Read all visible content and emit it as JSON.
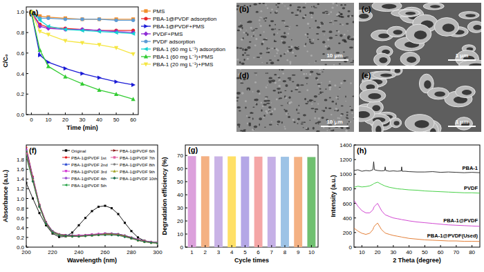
{
  "chart_data": [
    {
      "type": "line",
      "title": "(a)",
      "x_label": "Time (min)",
      "y_label": "C/C₀",
      "x": [
        0,
        5,
        10,
        20,
        30,
        40,
        50,
        60
      ],
      "xlim": [
        -3,
        63
      ],
      "xticks": [
        0,
        10,
        20,
        30,
        40,
        50,
        60
      ],
      "ylim": [
        0,
        1.05
      ],
      "yticks": [
        {
          "value": 0,
          "label": "0.0"
        },
        {
          "value": 0.2,
          "label": "0.2"
        },
        {
          "value": 0.4,
          "label": "0.4"
        },
        {
          "value": 0.6,
          "label": "0.6"
        },
        {
          "value": 0.8,
          "label": "0.8"
        },
        {
          "value": 1,
          "label": "1.0"
        }
      ],
      "legend": "right",
      "series": [
        {
          "name": "PMS",
          "color": "#f28e2b",
          "marker": "square",
          "values": [
            1,
            0.96,
            0.95,
            0.94,
            0.93,
            0.93,
            0.93,
            0.93
          ]
        },
        {
          "name": "PBA-1@PVDF adsorption",
          "color": "#e8262a",
          "marker": "circle",
          "values": [
            1,
            0.88,
            0.85,
            0.84,
            0.83,
            0.82,
            0.82,
            0.82
          ]
        },
        {
          "name": "PBA-1@PVDF+PMS",
          "color": "#1a1ad6",
          "marker": "triangle-right",
          "values": [
            1,
            0.58,
            0.51,
            0.45,
            0.4,
            0.36,
            0.32,
            0.29
          ]
        },
        {
          "name": "PVDF+PMS",
          "color": "#8e2bd6",
          "marker": "diamond",
          "values": [
            1,
            0.86,
            0.84,
            0.83,
            0.83,
            0.82,
            0.81,
            0.8
          ]
        },
        {
          "name": "PVDF adsorption",
          "color": "#5b9bd5",
          "marker": "circle",
          "values": [
            1,
            0.94,
            0.94,
            0.93,
            0.93,
            0.93,
            0.92,
            0.92
          ]
        },
        {
          "name": "PBA-1 (60 mg L⁻¹) adsorption",
          "color": "#14d2d2",
          "marker": "triangle-left",
          "values": [
            1,
            0.92,
            0.86,
            0.83,
            0.82,
            0.81,
            0.8,
            0.79
          ]
        },
        {
          "name": "PBA-1 (60 mg L⁻¹)+PMS",
          "color": "#33cc33",
          "marker": "triangle-up",
          "values": [
            1,
            0.63,
            0.47,
            0.37,
            0.3,
            0.24,
            0.2,
            0.15
          ]
        },
        {
          "name": "PBA-1 (20 mg L⁻¹)+PMS",
          "color": "#f5e642",
          "marker": "triangle-down",
          "values": [
            1,
            0.81,
            0.78,
            0.72,
            0.7,
            0.68,
            0.65,
            0.59
          ]
        }
      ]
    },
    {
      "type": "line",
      "title": "(f)",
      "x_label": "Wavelength (nm)",
      "y_label": "Absorbance (a.u.)",
      "x": [
        200,
        205,
        210,
        215,
        220,
        225,
        230,
        235,
        240,
        245,
        250,
        255,
        260,
        265,
        270,
        275,
        280,
        285,
        290,
        295,
        300
      ],
      "xlim": [
        200,
        300
      ],
      "xticks": [
        200,
        220,
        240,
        260,
        280,
        300
      ],
      "ylim": [
        0,
        2.1
      ],
      "yticks": [
        {
          "value": 0,
          "label": "0.0"
        },
        {
          "value": 0.2,
          "label": "0.2"
        },
        {
          "value": 0.4,
          "label": "0.4"
        },
        {
          "value": 0.6,
          "label": "0.6"
        },
        {
          "value": 0.8,
          "label": "0.8"
        },
        {
          "value": 1,
          "label": "1.0"
        },
        {
          "value": 1.2,
          "label": "1.2"
        },
        {
          "value": 1.4,
          "label": "1.4"
        },
        {
          "value": 1.6,
          "label": "1.6"
        },
        {
          "value": 1.8,
          "label": "1.8"
        }
      ],
      "legend": "upper right",
      "series": [
        {
          "name": "Original",
          "color": "#000000",
          "marker": "square",
          "values": [
            1.32,
            1.0,
            0.7,
            0.45,
            0.28,
            0.21,
            0.22,
            0.3,
            0.45,
            0.6,
            0.74,
            0.83,
            0.85,
            0.8,
            0.68,
            0.5,
            0.33,
            0.2,
            0.13,
            0.1,
            0.09
          ]
        },
        {
          "name": "PBA-1@PVDF 1st",
          "color": "#e41a1c",
          "marker": "circle",
          "values": [
            2.05,
            1.45,
            0.88,
            0.52,
            0.33,
            0.27,
            0.25,
            0.24,
            0.24,
            0.25,
            0.26,
            0.27,
            0.28,
            0.28,
            0.27,
            0.24,
            0.2,
            0.16,
            0.13,
            0.11,
            0.1
          ]
        },
        {
          "name": "PBA-1@PVDF 2nd",
          "color": "#2040d0",
          "marker": "triangle-up",
          "values": [
            2.02,
            1.43,
            0.87,
            0.51,
            0.33,
            0.26,
            0.25,
            0.24,
            0.24,
            0.25,
            0.26,
            0.27,
            0.28,
            0.28,
            0.27,
            0.24,
            0.2,
            0.16,
            0.13,
            0.11,
            0.1
          ]
        },
        {
          "name": "PBA-1@PVDF 3rd",
          "color": "#d020d0",
          "marker": "triangle-down",
          "values": [
            2.0,
            1.42,
            0.86,
            0.51,
            0.32,
            0.26,
            0.24,
            0.23,
            0.24,
            0.25,
            0.26,
            0.27,
            0.28,
            0.27,
            0.26,
            0.23,
            0.19,
            0.15,
            0.12,
            0.1,
            0.09
          ]
        },
        {
          "name": "PBA-1@PVDF 4th",
          "color": "#9a4dd0",
          "marker": "diamond",
          "values": [
            1.98,
            1.41,
            0.86,
            0.5,
            0.32,
            0.26,
            0.24,
            0.23,
            0.23,
            0.24,
            0.25,
            0.26,
            0.27,
            0.27,
            0.26,
            0.23,
            0.19,
            0.15,
            0.12,
            0.1,
            0.09
          ]
        },
        {
          "name": "PBA-1@PVDF 5th",
          "color": "#20a040",
          "marker": "triangle-left",
          "values": [
            1.96,
            1.4,
            0.85,
            0.5,
            0.32,
            0.26,
            0.24,
            0.23,
            0.23,
            0.24,
            0.25,
            0.26,
            0.27,
            0.27,
            0.26,
            0.23,
            0.19,
            0.15,
            0.12,
            0.1,
            0.09
          ]
        },
        {
          "name": "PBA-1@PVDF 6th",
          "color": "#8b1a1a",
          "marker": "triangle-right",
          "values": [
            1.94,
            1.39,
            0.85,
            0.5,
            0.31,
            0.25,
            0.24,
            0.23,
            0.23,
            0.24,
            0.25,
            0.26,
            0.27,
            0.27,
            0.26,
            0.23,
            0.19,
            0.15,
            0.12,
            0.1,
            0.09
          ]
        },
        {
          "name": "PBA-1@PVDF 7th",
          "color": "#e060a0",
          "marker": "square",
          "values": [
            1.92,
            1.38,
            0.84,
            0.49,
            0.31,
            0.25,
            0.23,
            0.22,
            0.23,
            0.24,
            0.25,
            0.26,
            0.26,
            0.26,
            0.25,
            0.22,
            0.18,
            0.15,
            0.12,
            0.1,
            0.09
          ]
        },
        {
          "name": "PBA-1@PVDF 8th",
          "color": "#808080",
          "marker": "circle",
          "values": [
            1.9,
            1.37,
            0.84,
            0.49,
            0.31,
            0.25,
            0.23,
            0.22,
            0.22,
            0.23,
            0.24,
            0.25,
            0.26,
            0.26,
            0.25,
            0.22,
            0.18,
            0.14,
            0.11,
            0.1,
            0.09
          ]
        },
        {
          "name": "PBA-1@PVDF 9th",
          "color": "#a0a020",
          "marker": "triangle-up",
          "values": [
            1.88,
            1.36,
            0.83,
            0.48,
            0.3,
            0.25,
            0.23,
            0.22,
            0.22,
            0.23,
            0.24,
            0.25,
            0.26,
            0.26,
            0.25,
            0.22,
            0.18,
            0.14,
            0.11,
            0.09,
            0.08
          ]
        },
        {
          "name": "PBA-1@PVDF 10th",
          "color": "#207050",
          "marker": "diamond",
          "values": [
            1.86,
            1.35,
            0.83,
            0.48,
            0.3,
            0.24,
            0.23,
            0.22,
            0.22,
            0.23,
            0.24,
            0.25,
            0.25,
            0.25,
            0.24,
            0.21,
            0.18,
            0.14,
            0.11,
            0.09,
            0.08
          ]
        }
      ]
    },
    {
      "type": "bar",
      "title": "(g)",
      "x_label": "Cycle times",
      "y_label": "Degradation efficiency (%)",
      "categories": [
        "1",
        "2",
        "3",
        "4",
        "5",
        "6",
        "7",
        "8",
        "9",
        "10"
      ],
      "values": [
        69.5,
        69.4,
        69.3,
        69.3,
        69.2,
        69.1,
        69.0,
        69.0,
        68.9,
        68.8
      ],
      "colors": [
        "#dca0dc",
        "#f4b183",
        "#c9b3e6",
        "#ffe066",
        "#b4a7e6",
        "#f4a6a6",
        "#c5b0e6",
        "#9dc3e6",
        "#f4b183",
        "#70c070"
      ],
      "ylim": [
        0,
        78
      ],
      "yticks": [
        0,
        10,
        20,
        30,
        40,
        50,
        60,
        70
      ]
    },
    {
      "type": "line",
      "title": "(h)",
      "x_label": "2 Theta (degree)",
      "y_label": "Intensity (a.u.)",
      "x": [
        5,
        7.5,
        10,
        12.5,
        15,
        17,
        17.5,
        18,
        20,
        22.5,
        24.5,
        24.8,
        25.2,
        27.5,
        30,
        32.5,
        35,
        35.3,
        35.6,
        37.5,
        40,
        45,
        50,
        55,
        60,
        65,
        70,
        75,
        80,
        85
      ],
      "xlim": [
        5,
        85
      ],
      "xticks": [
        10,
        20,
        30,
        40,
        50,
        60,
        70,
        80
      ],
      "ylim": [
        0,
        1400
      ],
      "yticks": [
        0,
        200,
        400,
        600,
        800,
        1000,
        1200,
        1400
      ],
      "legend": "inline",
      "series": [
        {
          "name": "PBA-1",
          "color": "#1a1a1a",
          "values": [
            1050,
            1060,
            1040,
            1050,
            1045,
            1060,
            1170,
            1060,
            1050,
            1045,
            1050,
            1100,
            1050,
            1040,
            1045,
            1040,
            1045,
            1100,
            1040,
            1040,
            1035,
            1030,
            1030,
            1035,
            1025,
            1030,
            1025,
            1020,
            1025,
            1020
          ]
        },
        {
          "name": "PVDF",
          "color": "#33cc33",
          "values": [
            820,
            835,
            825,
            830,
            840,
            860,
            870,
            875,
            890,
            860,
            840,
            838,
            835,
            820,
            810,
            800,
            795,
            795,
            795,
            790,
            785,
            780,
            770,
            765,
            760,
            755,
            750,
            745,
            745,
            740
          ]
        },
        {
          "name": "PBA-1@PVDF",
          "color": "#cc33cc",
          "values": [
            640,
            560,
            500,
            470,
            470,
            510,
            540,
            560,
            600,
            500,
            450,
            445,
            440,
            420,
            400,
            390,
            380,
            378,
            376,
            370,
            360,
            345,
            335,
            325,
            315,
            305,
            300,
            295,
            290,
            285
          ]
        },
        {
          "name": "PBA-1@PVDF(Used)",
          "color": "#e07020",
          "values": [
            260,
            220,
            190,
            175,
            190,
            240,
            270,
            290,
            330,
            240,
            200,
            195,
            190,
            175,
            160,
            150,
            140,
            138,
            136,
            130,
            120,
            110,
            100,
            95,
            90,
            85,
            85,
            80,
            80,
            78
          ]
        }
      ]
    }
  ],
  "images": [
    {
      "label": "(b)",
      "scale_bar": "10 μm"
    },
    {
      "label": "(c)",
      "scale_bar": "1 μm"
    },
    {
      "label": "(d)",
      "scale_bar": "10 μm"
    },
    {
      "label": "(e)",
      "scale_bar": "1 μm"
    }
  ]
}
